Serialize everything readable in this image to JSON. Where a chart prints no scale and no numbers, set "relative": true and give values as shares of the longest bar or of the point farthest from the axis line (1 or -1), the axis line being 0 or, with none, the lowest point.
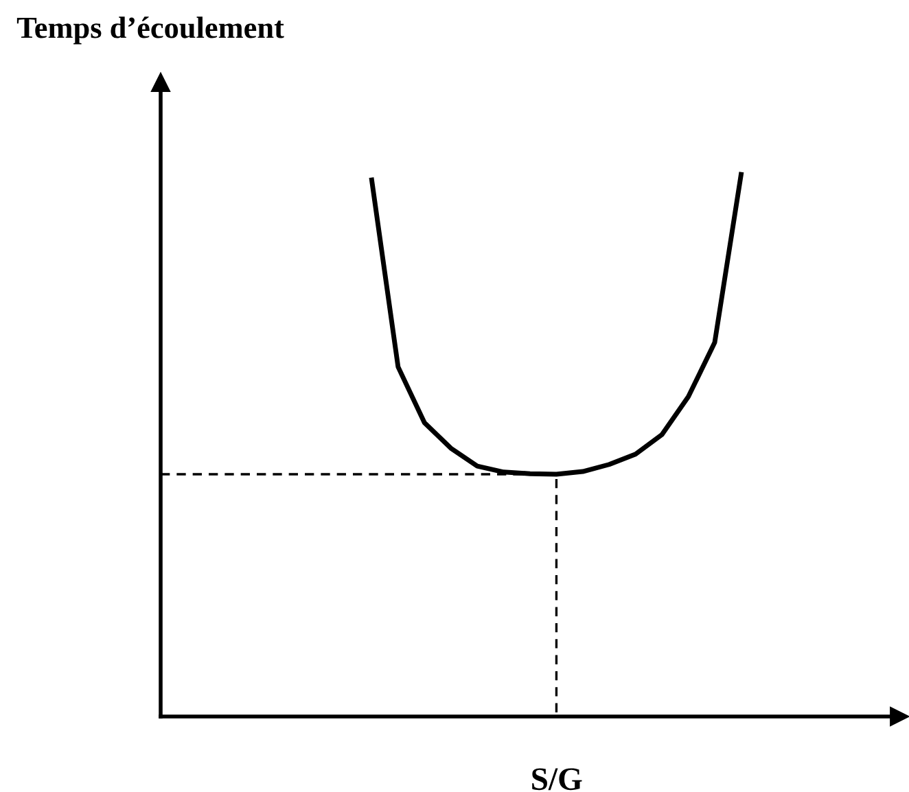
{
  "chart_data": {
    "type": "line",
    "relative": true,
    "xlabel": "S/G",
    "ylabel": "Temps d’écoulement",
    "categories": [
      null,
      null,
      null,
      null,
      null,
      null,
      null,
      null,
      null,
      null,
      null,
      null,
      null,
      null,
      null,
      null,
      null,
      null,
      null,
      null,
      null,
      null,
      null,
      null,
      null,
      null,
      null,
      null,
      null
    ],
    "series": [
      {
        "color": "#000000",
        "line_style": "solid",
        "values": [
          null,
          null,
          null,
          null,
          null,
          null,
          null,
          null,
          0.99,
          0.645,
          0.542,
          0.495,
          0.462,
          0.451,
          0.448,
          0.447,
          0.452,
          0.465,
          0.484,
          0.52,
          0.59,
          0.69,
          1.0,
          null,
          null,
          null,
          null,
          null,
          null
        ]
      },
      {
        "type": "step",
        "color": "#000000",
        "line_style": "dashed",
        "values": [
          0.447,
          0.447,
          0.447,
          0.447,
          0.447,
          0.447,
          0.447,
          0.447,
          0.447,
          0.447,
          0.447,
          0.447,
          0.447,
          0.447,
          0.447,
          0.447,
          0,
          null,
          null,
          null,
          null,
          null,
          null,
          null,
          null,
          null,
          null,
          null,
          null
        ]
      }
    ]
  }
}
